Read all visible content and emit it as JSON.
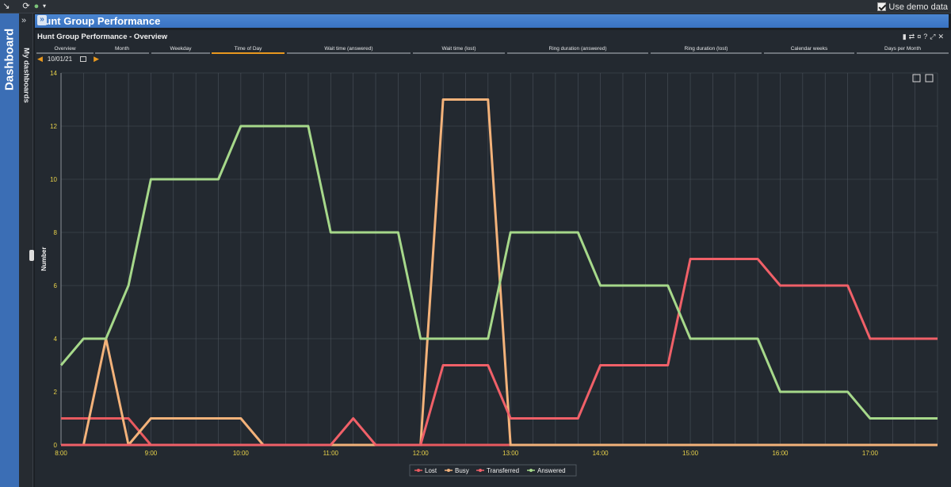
{
  "toolbar": {
    "use_demo_data_label": "Use demo data",
    "use_demo_data_checked": true,
    "refresh_icon": "refresh-icon",
    "status_icon": "status-dot-icon"
  },
  "sidebar": {
    "label": "Dashboard"
  },
  "side_strip": {
    "label": "My dashboards"
  },
  "page": {
    "title": "Hunt Group Performance"
  },
  "widget": {
    "title": "Hunt Group Performance - Overview",
    "tabs": [
      {
        "label": "Overview",
        "active": false
      },
      {
        "label": "Month",
        "active": false
      },
      {
        "label": "Weekday",
        "active": false
      },
      {
        "label": "Time of Day",
        "active": true
      },
      {
        "label": "Wait time (answered)",
        "active": false
      },
      {
        "label": "Wait time (lost)",
        "active": false
      },
      {
        "label": "Ring duration (answered)",
        "active": false
      },
      {
        "label": "Ring duration (lost)",
        "active": false
      },
      {
        "label": "Calendar weeks",
        "active": false
      },
      {
        "label": "Days per Month",
        "active": false
      }
    ],
    "date": "10/01/21"
  },
  "chart_data": {
    "type": "line",
    "ylabel": "Number",
    "ylim": [
      0,
      14
    ],
    "yticks": [
      0,
      2,
      4,
      6,
      8,
      10,
      12,
      14
    ],
    "xticks": [
      "8:00",
      "9:00",
      "10:00",
      "11:00",
      "12:00",
      "13:00",
      "14:00",
      "15:00",
      "16:00",
      "17:00"
    ],
    "x": [
      "8:00",
      "8:15",
      "8:30",
      "8:45",
      "9:00",
      "9:15",
      "9:30",
      "9:45",
      "10:00",
      "10:15",
      "10:30",
      "10:45",
      "11:00",
      "11:15",
      "11:30",
      "11:45",
      "12:00",
      "12:15",
      "12:30",
      "12:45",
      "13:00",
      "13:15",
      "13:30",
      "13:45",
      "14:00",
      "14:15",
      "14:30",
      "14:45",
      "15:00",
      "15:15",
      "15:30",
      "15:45",
      "16:00",
      "16:15",
      "16:30",
      "16:45",
      "17:00",
      "17:15",
      "17:30",
      "17:45"
    ],
    "grid": true,
    "legend_position": "bottom",
    "series": [
      {
        "name": "Lost",
        "color": "#e85a5f",
        "values": [
          1,
          1,
          1,
          1,
          0,
          0,
          0,
          0,
          0,
          0,
          0,
          0,
          0,
          0,
          0,
          0,
          0,
          0,
          0,
          0,
          0,
          0,
          0,
          0,
          0,
          0,
          0,
          0,
          0,
          0,
          0,
          0,
          0,
          0,
          0,
          0,
          0,
          0,
          0,
          0
        ]
      },
      {
        "name": "Busy",
        "color": "#f3b27a",
        "values": [
          0,
          0,
          4,
          0,
          1,
          1,
          1,
          1,
          1,
          0,
          0,
          0,
          0,
          0,
          0,
          0,
          0,
          13,
          13,
          13,
          0,
          0,
          0,
          0,
          0,
          0,
          0,
          0,
          0,
          0,
          0,
          0,
          0,
          0,
          0,
          0,
          0,
          0,
          0,
          0
        ]
      },
      {
        "name": "Transferred",
        "color": "#f06068",
        "values": [
          0,
          0,
          0,
          0,
          0,
          0,
          0,
          0,
          0,
          0,
          0,
          0,
          0,
          1,
          0,
          0,
          0,
          3,
          3,
          3,
          1,
          1,
          1,
          1,
          3,
          3,
          3,
          3,
          7,
          7,
          7,
          7,
          6,
          6,
          6,
          6,
          4,
          4,
          4,
          4
        ]
      },
      {
        "name": "Answered",
        "color": "#a6d88a",
        "values": [
          3,
          4,
          4,
          6,
          10,
          10,
          10,
          10,
          12,
          12,
          12,
          12,
          8,
          8,
          8,
          8,
          4,
          4,
          4,
          4,
          8,
          8,
          8,
          8,
          6,
          6,
          6,
          6,
          4,
          4,
          4,
          4,
          2,
          2,
          2,
          2,
          1,
          1,
          1,
          1
        ]
      }
    ]
  }
}
